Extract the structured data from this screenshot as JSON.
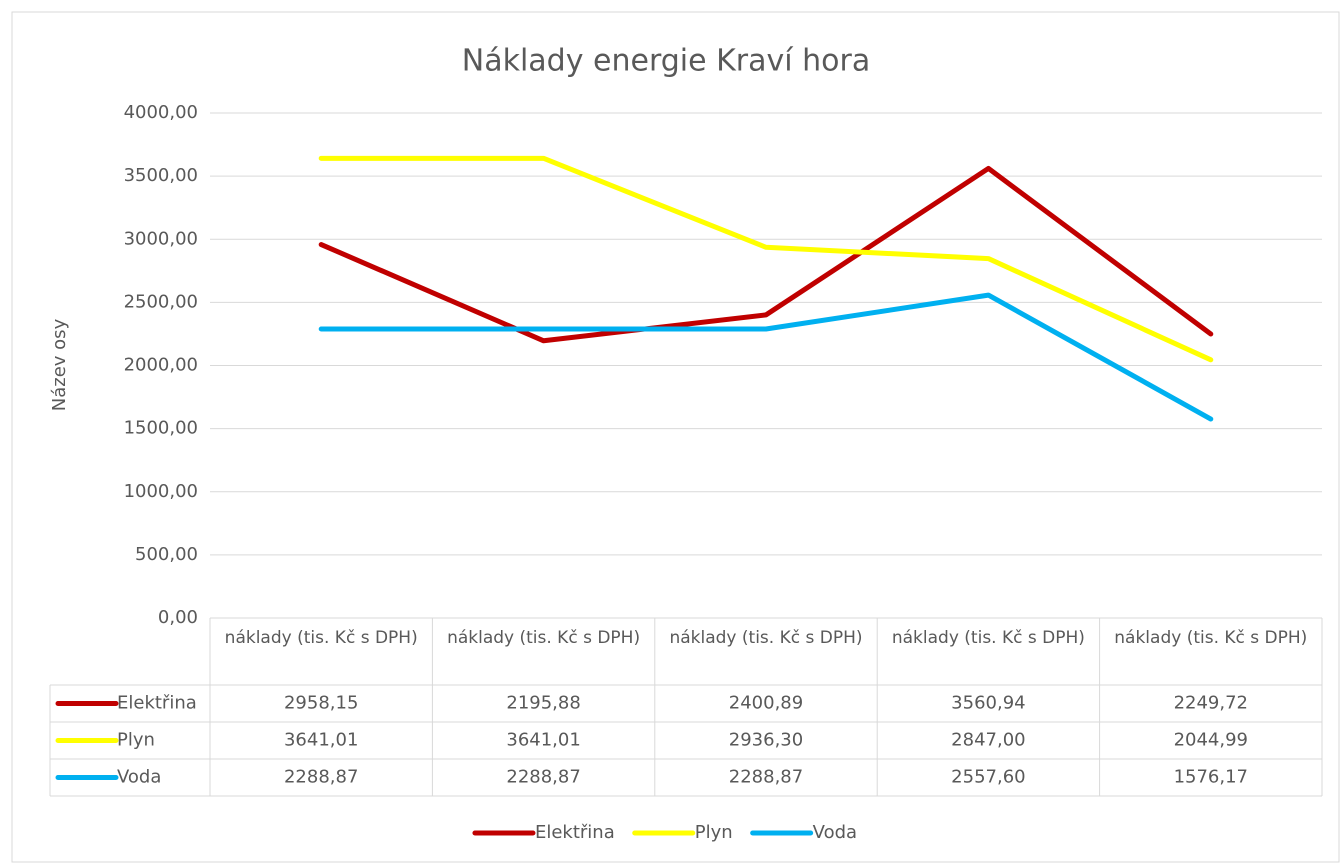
{
  "chart_data": {
    "type": "line",
    "title": "Náklady energie Kraví hora",
    "y_label": "Název osy",
    "categories": [
      "náklady (tis. Kč s DPH)",
      "náklady (tis. Kč s DPH)",
      "náklady (tis. Kč s DPH)",
      "náklady (tis. Kč s DPH)",
      "náklady (tis. Kč s DPH)"
    ],
    "series": [
      {
        "name": "Elektřina",
        "color": "#c00000",
        "values": [
          2958.15,
          2195.88,
          2400.89,
          3560.94,
          2249.72
        ],
        "value_labels": [
          "2958,15",
          "2195,88",
          "2400,89",
          "3560,94",
          "2249,72"
        ]
      },
      {
        "name": "Plyn",
        "color": "#ffff00",
        "values": [
          3641.01,
          3641.01,
          2936.3,
          2847.0,
          2044.99
        ],
        "value_labels": [
          "3641,01",
          "3641,01",
          "2936,30",
          "2847,00",
          "2044,99"
        ]
      },
      {
        "name": "Voda",
        "color": "#00b0f0",
        "values": [
          2288.87,
          2288.87,
          2288.87,
          2557.6,
          1576.17
        ],
        "value_labels": [
          "2288,87",
          "2288,87",
          "2288,87",
          "2557,60",
          "1576,17"
        ]
      }
    ],
    "ylim": [
      0,
      4000
    ],
    "yticks": [
      {
        "value": 0,
        "label": "0,00"
      },
      {
        "value": 500,
        "label": "500,00"
      },
      {
        "value": 1000,
        "label": "1000,00"
      },
      {
        "value": 1500,
        "label": "1500,00"
      },
      {
        "value": 2000,
        "label": "2000,00"
      },
      {
        "value": 2500,
        "label": "2500,00"
      },
      {
        "value": 3000,
        "label": "3000,00"
      },
      {
        "value": 3500,
        "label": "3500,00"
      },
      {
        "value": 4000,
        "label": "4000,00"
      }
    ],
    "grid": true,
    "legend": "bottom",
    "data_table": true
  }
}
